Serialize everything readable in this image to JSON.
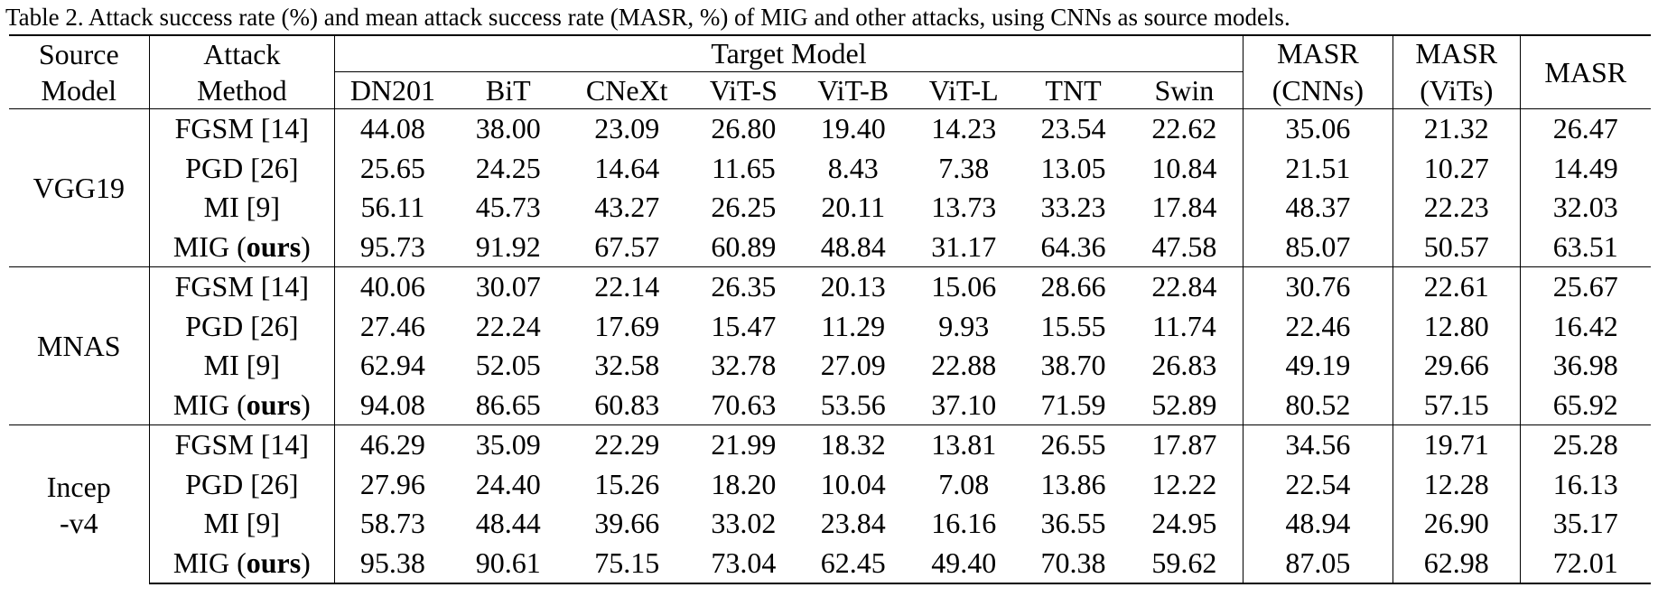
{
  "caption": "Table 2. Attack success rate (%) and mean attack success rate (MASR, %) of MIG and other attacks, using CNNs as source models.",
  "header": {
    "source_line1": "Source",
    "source_line2": "Model",
    "attack_line1": "Attack",
    "attack_line2": "Method",
    "target_model": "Target Model",
    "targets": [
      "DN201",
      "BiT",
      "CNeXt",
      "ViT-S",
      "ViT-B",
      "ViT-L",
      "TNT",
      "Swin"
    ],
    "masr_cnns_line1": "MASR",
    "masr_cnns_line2": "(CNNs)",
    "masr_vits_line1": "MASR",
    "masr_vits_line2": "(ViTs)",
    "masr": "MASR"
  },
  "groups": [
    {
      "source_line1": "VGG19",
      "source_line2": "",
      "rows": [
        {
          "method": "FGSM [14]",
          "method_suffix": "",
          "values": [
            "44.08",
            "38.00",
            "23.09",
            "26.80",
            "19.40",
            "14.23",
            "23.54",
            "22.62",
            "35.06",
            "21.32",
            "26.47"
          ],
          "bold": false
        },
        {
          "method": "PGD [26]",
          "method_suffix": "",
          "values": [
            "25.65",
            "24.25",
            "14.64",
            "11.65",
            "8.43",
            "7.38",
            "13.05",
            "10.84",
            "21.51",
            "10.27",
            "14.49"
          ],
          "bold": false
        },
        {
          "method": "MI [9]",
          "method_suffix": "",
          "values": [
            "56.11",
            "45.73",
            "43.27",
            "26.25",
            "20.11",
            "13.73",
            "33.23",
            "17.84",
            "48.37",
            "22.23",
            "32.03"
          ],
          "bold": false
        },
        {
          "method": "MIG (",
          "method_bold": "ours",
          "method_suffix": ")",
          "values": [
            "95.73",
            "91.92",
            "67.57",
            "60.89",
            "48.84",
            "31.17",
            "64.36",
            "47.58",
            "85.07",
            "50.57",
            "63.51"
          ],
          "bold": true
        }
      ]
    },
    {
      "source_line1": "MNAS",
      "source_line2": "",
      "rows": [
        {
          "method": "FGSM [14]",
          "method_suffix": "",
          "values": [
            "40.06",
            "30.07",
            "22.14",
            "26.35",
            "20.13",
            "15.06",
            "28.66",
            "22.84",
            "30.76",
            "22.61",
            "25.67"
          ],
          "bold": false
        },
        {
          "method": "PGD [26]",
          "method_suffix": "",
          "values": [
            "27.46",
            "22.24",
            "17.69",
            "15.47",
            "11.29",
            "9.93",
            "15.55",
            "11.74",
            "22.46",
            "12.80",
            "16.42"
          ],
          "bold": false
        },
        {
          "method": "MI [9]",
          "method_suffix": "",
          "values": [
            "62.94",
            "52.05",
            "32.58",
            "32.78",
            "27.09",
            "22.88",
            "38.70",
            "26.83",
            "49.19",
            "29.66",
            "36.98"
          ],
          "bold": false
        },
        {
          "method": "MIG (",
          "method_bold": "ours",
          "method_suffix": ")",
          "values": [
            "94.08",
            "86.65",
            "60.83",
            "70.63",
            "53.56",
            "37.10",
            "71.59",
            "52.89",
            "80.52",
            "57.15",
            "65.92"
          ],
          "bold": true
        }
      ]
    },
    {
      "source_line1": "Incep",
      "source_line2": "-v4",
      "rows": [
        {
          "method": "FGSM [14]",
          "method_suffix": "",
          "values": [
            "46.29",
            "35.09",
            "22.29",
            "21.99",
            "18.32",
            "13.81",
            "26.55",
            "17.87",
            "34.56",
            "19.71",
            "25.28"
          ],
          "bold": false
        },
        {
          "method": "PGD [26]",
          "method_suffix": "",
          "values": [
            "27.96",
            "24.40",
            "15.26",
            "18.20",
            "10.04",
            "7.08",
            "13.86",
            "12.22",
            "22.54",
            "12.28",
            "16.13"
          ],
          "bold": false
        },
        {
          "method": "MI [9]",
          "method_suffix": "",
          "values": [
            "58.73",
            "48.44",
            "39.66",
            "33.02",
            "23.84",
            "16.16",
            "36.55",
            "24.95",
            "48.94",
            "26.90",
            "35.17"
          ],
          "bold": false
        },
        {
          "method": "MIG (",
          "method_bold": "ours",
          "method_suffix": ")",
          "values": [
            "95.38",
            "90.61",
            "75.15",
            "73.04",
            "62.45",
            "49.40",
            "70.38",
            "59.62",
            "87.05",
            "62.98",
            "72.01"
          ],
          "bold": true
        }
      ]
    }
  ]
}
